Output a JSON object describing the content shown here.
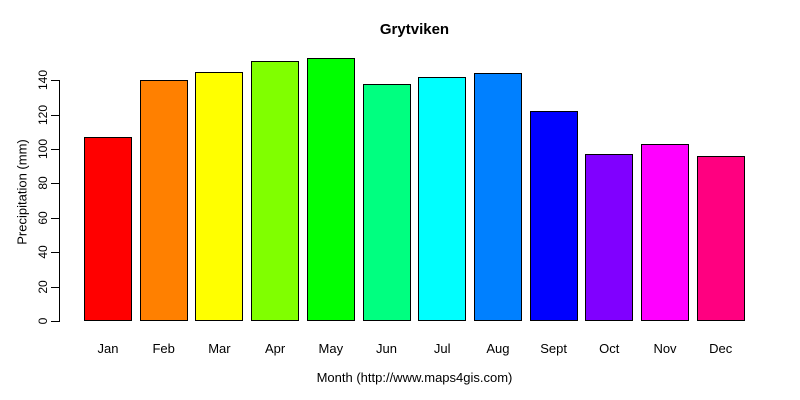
{
  "chart_data": {
    "type": "bar",
    "title": "Grytviken",
    "xlabel": "Month (http://www.maps4gis.com)",
    "ylabel": "Precipitation (mm)",
    "categories": [
      "Jan",
      "Feb",
      "Mar",
      "Apr",
      "May",
      "Jun",
      "Jul",
      "Aug",
      "Sept",
      "Oct",
      "Nov",
      "Dec"
    ],
    "values": [
      107,
      140,
      145,
      151,
      153,
      138,
      142,
      144,
      122,
      97,
      103,
      96
    ],
    "colors": [
      "#FF0000",
      "#FF8000",
      "#FFFF00",
      "#80FF00",
      "#00FF00",
      "#00FF80",
      "#00FFFF",
      "#0080FF",
      "#0000FF",
      "#8000FF",
      "#FF00FF",
      "#FF0080"
    ],
    "yticks": [
      0,
      20,
      40,
      60,
      80,
      100,
      120,
      140
    ],
    "ylim": [
      0,
      140
    ],
    "grid": false,
    "legend": "none",
    "background_color": "#FFFFFF",
    "bar_border_color": "#000000",
    "text_color": "#000000"
  }
}
